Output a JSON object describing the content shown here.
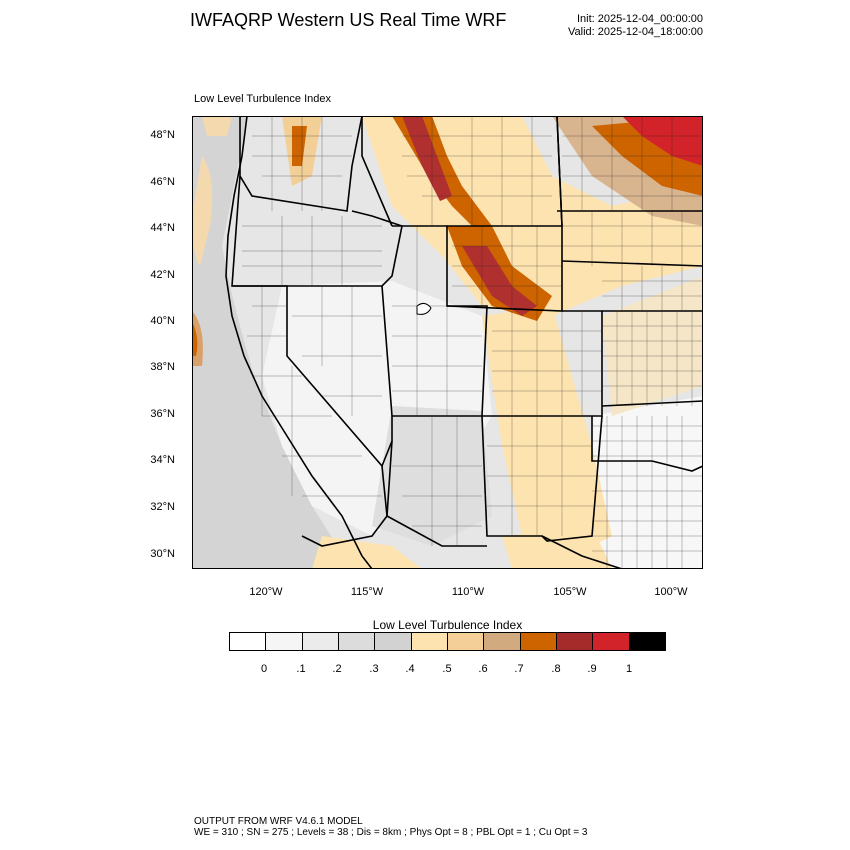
{
  "title": "IWFAQRP Western US Real Time WRF",
  "init": "Init: 2025-12-04_00:00:00",
  "valid": "Valid: 2025-12-04_18:00:00",
  "subtitle": "Low Level Turbulence Index",
  "lat_labels": [
    "48°N",
    "46°N",
    "44°N",
    "42°N",
    "40°N",
    "38°N",
    "36°N",
    "34°N",
    "32°N",
    "30°N"
  ],
  "lon_labels": [
    "120°W",
    "115°W",
    "110°W",
    "105°W",
    "100°W"
  ],
  "colorbar": {
    "title": "Low Level Turbulence Index",
    "colors": [
      "#ffffff",
      "#f5f5f5",
      "#ebebeb",
      "#dcdcdc",
      "#d2d2d2",
      "#fde3b0",
      "#f5cf98",
      "#d2aa80",
      "#cd6400",
      "#a52a2a",
      "#d2232a",
      "#000000"
    ],
    "labels": [
      "0",
      ".1",
      ".2",
      ".3",
      ".4",
      ".5",
      ".6",
      ".7",
      ".8",
      ".9",
      "1"
    ]
  },
  "footer": {
    "line1": "OUTPUT FROM WRF V4.6.1 MODEL",
    "line2": "WE = 310 ; SN = 275 ; Levels = 38 ; Dis = 8km ; Phys Opt = 8 ; PBL Opt = 1 ; Cu Opt = 3"
  }
}
